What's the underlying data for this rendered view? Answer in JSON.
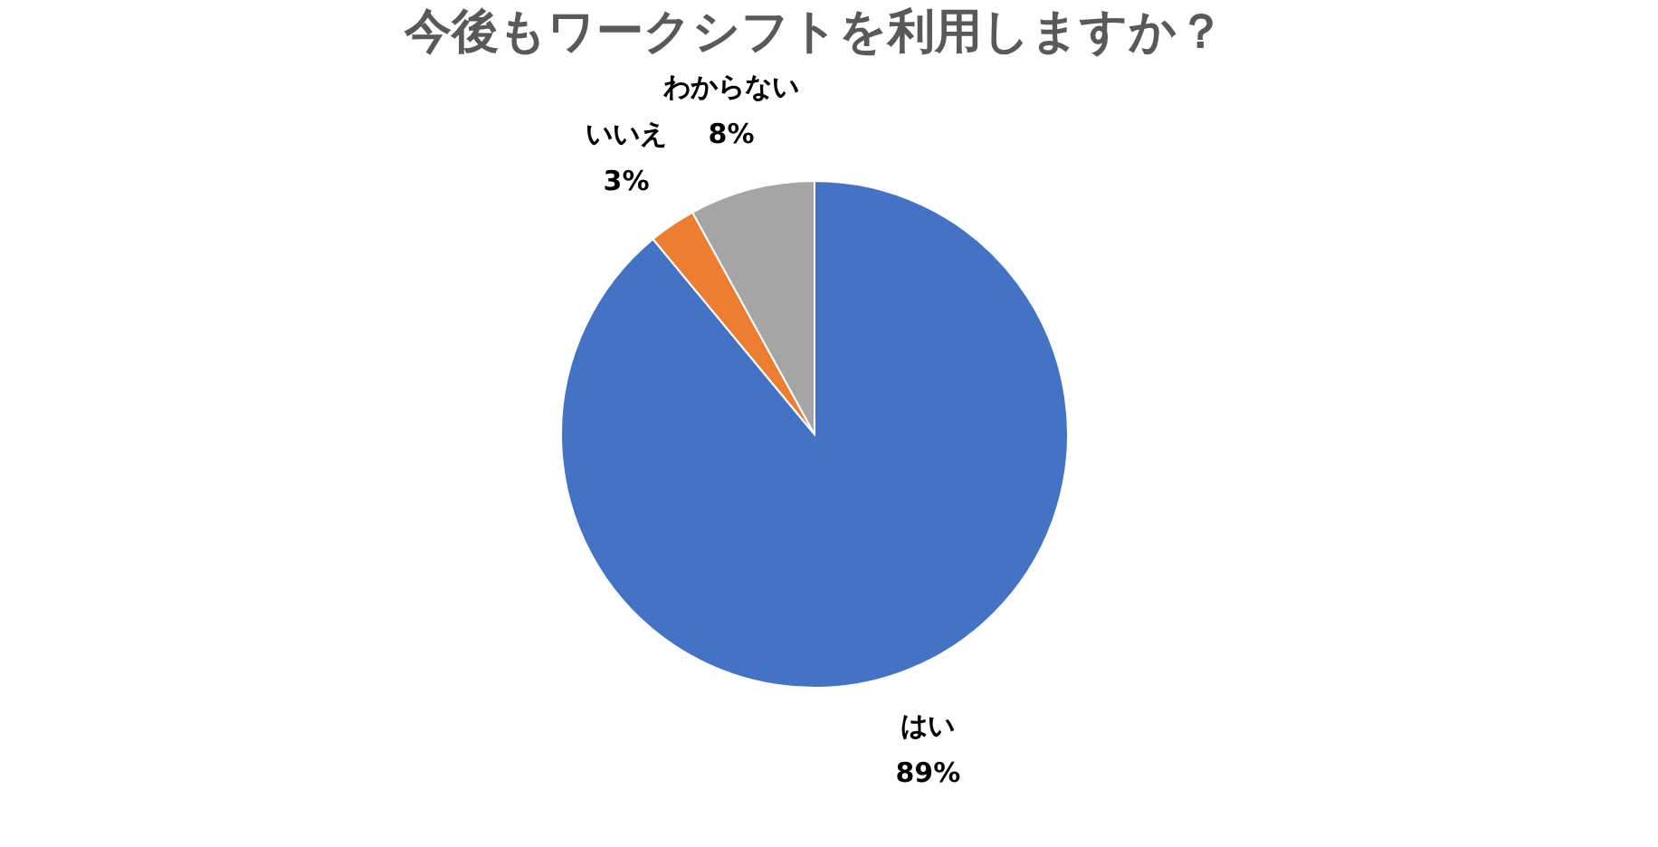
{
  "chart_data": {
    "type": "pie",
    "title": "今後もワークシフトを利用しますか？",
    "categories": [
      "はい",
      "いいえ",
      "わからない"
    ],
    "values": [
      89,
      3,
      8
    ],
    "colors": [
      "#4472c4",
      "#ed7d31",
      "#a5a5a5"
    ],
    "value_labels": [
      "89%",
      "3%",
      "8%"
    ],
    "legend": false
  }
}
